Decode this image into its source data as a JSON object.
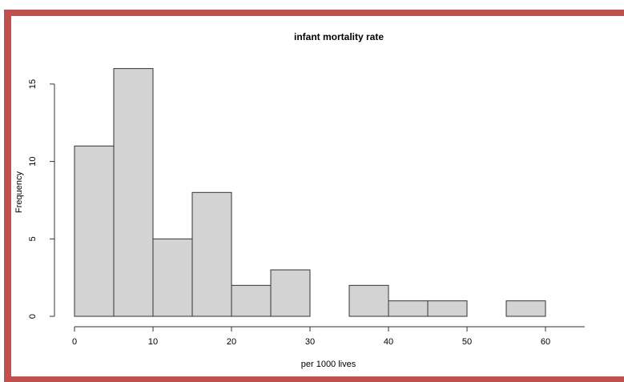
{
  "chart_data": {
    "type": "histogram",
    "title": "infant mortality rate",
    "x_label": "per 1000 lives",
    "y_label": "Frequency",
    "bins": [
      0,
      5,
      10,
      15,
      20,
      25,
      30,
      35,
      40,
      45,
      50,
      55,
      60,
      65
    ],
    "values": [
      11,
      16,
      5,
      8,
      2,
      3,
      0,
      2,
      1,
      1,
      0,
      1,
      0
    ],
    "color": "#d3d3d3",
    "xlim": [
      0,
      65
    ],
    "xticks": [
      0,
      10,
      20,
      30,
      40,
      50,
      60
    ],
    "ylim": [
      0,
      16
    ],
    "yticks": [
      0,
      5,
      10,
      15
    ]
  }
}
